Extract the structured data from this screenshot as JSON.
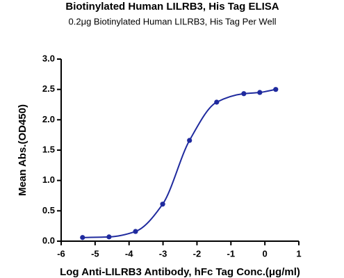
{
  "chart_data": {
    "type": "scatter",
    "title": "Biotinylated Human LILRB3, His Tag ELISA",
    "subtitle": "0.2μg Biotinylated Human LILRB3, His Tag Per Well",
    "x_label": "Log Anti-LILRB3 Antibody, hFc Tag Conc.(μg/ml)",
    "y_label": "Mean Abs.(OD450)",
    "series": [
      {
        "color": "#1f2a9e",
        "x": [
          -5.37,
          -4.59,
          -3.81,
          -3.01,
          -2.22,
          -1.42,
          -0.62,
          -0.15,
          0.32
        ],
        "values": [
          0.06,
          0.07,
          0.16,
          0.61,
          1.66,
          2.29,
          2.43,
          2.45,
          2.5
        ]
      }
    ],
    "xlim": [
      -6,
      1
    ],
    "xticks": [
      -6,
      -5,
      -4,
      -3,
      -2,
      -1,
      0,
      1
    ],
    "ylim": [
      0,
      3
    ],
    "yticks": [
      {
        "value": 0,
        "label": "0.0"
      },
      {
        "value": 0.5,
        "label": "0.5"
      },
      {
        "value": 1,
        "label": "1.0"
      },
      {
        "value": 1.5,
        "label": "1.5"
      },
      {
        "value": 2,
        "label": "2.0"
      },
      {
        "value": 2.5,
        "label": "2.5"
      },
      {
        "value": 3,
        "label": "3.0"
      }
    ],
    "grid": false
  }
}
